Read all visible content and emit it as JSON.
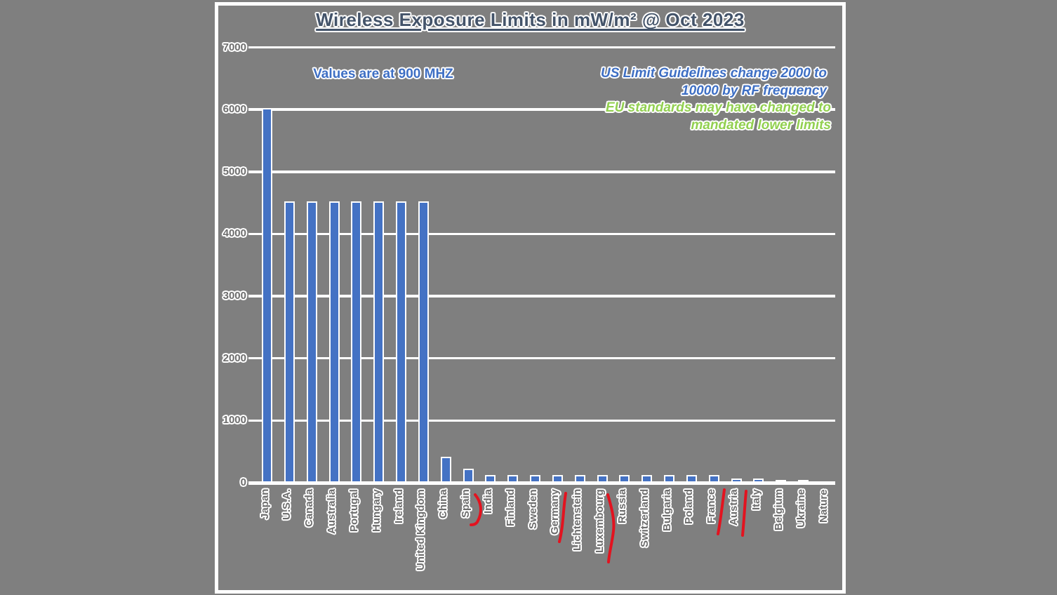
{
  "page": {
    "background_color": "#7f7f7f"
  },
  "chart_data": {
    "type": "bar",
    "title": "Wireless Exposure Limits in mW/m² @ Oct 2023",
    "xlabel": "",
    "ylabel": "",
    "unit": "mW/m²",
    "ylim": [
      0,
      7000
    ],
    "yticks": [
      0,
      1000,
      2000,
      3000,
      4000,
      5000,
      6000,
      7000
    ],
    "grid": true,
    "legend": false,
    "categories": [
      "Japan",
      "U.S.A.",
      "Canada",
      "Australia",
      "Portugal",
      "Hungary",
      "Ireland",
      "United Kingdom",
      "China",
      "Spain",
      "India",
      "Finland",
      "Sweden",
      "Germany",
      "Lichtenstein",
      "Luxembourg",
      "Russia",
      "Switzerland",
      "Bulgaria",
      "Poland",
      "France",
      "Austria",
      "Italy",
      "Belgium",
      "Ukraine",
      "Nature"
    ],
    "values": [
      6000,
      4500,
      4500,
      4500,
      4500,
      4500,
      4500,
      4500,
      400,
      200,
      100,
      100,
      100,
      100,
      100,
      100,
      100,
      100,
      100,
      100,
      100,
      50,
      50,
      25,
      25,
      0
    ],
    "red_marked_categories": [
      "Spain",
      "Germany",
      "Luxembourg",
      "France",
      "Austria"
    ],
    "notes": {
      "values_note": "Values are at 900 MHZ",
      "us_note_line1": "US Limit Guidelines change 2000 to",
      "us_note_line2": "10000 by RF frequency",
      "eu_note_line1": "EU standards may have changed to",
      "eu_note_line2": "mandated lower limits"
    },
    "colors": {
      "background": "#7f7f7f",
      "bar": "#4472c4",
      "gridlines": "#ffffff",
      "title_text": "#44546a",
      "axis_label_text": "#6d6d6d",
      "values_note_text": "#3e6fc4",
      "us_note_text": "#3e6fc4",
      "eu_note_text": "#92d050",
      "red_mark": "#e3131f"
    }
  }
}
